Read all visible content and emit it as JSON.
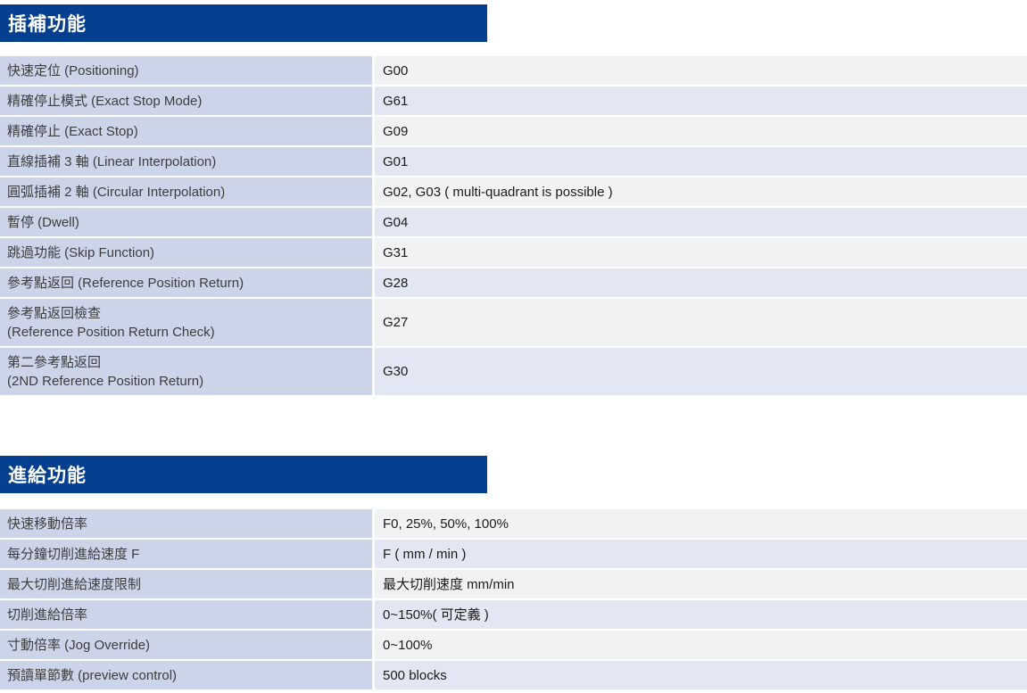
{
  "colors": {
    "header_bg": "#04408f",
    "header_text": "#ffffff",
    "label_column_bg": "#ccd4e9",
    "value_row_light": "#f1f2f4",
    "value_row_blue": "#e2e7f3",
    "label_text": "#3d3d3d",
    "value_text": "#1b1b1b"
  },
  "sections": [
    {
      "title": "插補功能",
      "rows": [
        {
          "label": "快速定位 (Positioning)",
          "value": "G00"
        },
        {
          "label": "精確停止模式 (Exact Stop Mode)",
          "value": "G61"
        },
        {
          "label": "精確停止 (Exact Stop)",
          "value": "G09"
        },
        {
          "label": "直線插補 3 軸 (Linear Interpolation)",
          "value": "G01"
        },
        {
          "label": "圓弧插補 2 軸 (Circular Interpolation)",
          "value": "G02, G03 ( multi-quadrant is possible )"
        },
        {
          "label": "暫停 (Dwell)",
          "value": "G04"
        },
        {
          "label": "跳過功能 (Skip Function)",
          "value": "G31"
        },
        {
          "label": "參考點返回 (Reference Position Return)",
          "value": "G28"
        },
        {
          "label": "參考點返回檢查",
          "label2": "(Reference Position Return Check)",
          "value": "G27"
        },
        {
          "label": "第二參考點返回",
          "label2": "(2ND Reference Position Return)",
          "value": "G30"
        }
      ]
    },
    {
      "title": "進給功能",
      "rows": [
        {
          "label": "快速移動倍率",
          "value": "F0, 25%, 50%, 100%"
        },
        {
          "label": "每分鐘切削進給速度 F",
          "value": "F ( mm / min )"
        },
        {
          "label": "最大切削進給速度限制",
          "value": "最大切削速度 mm/min"
        },
        {
          "label": "切削進給倍率",
          "value": "0~150%( 可定義 )"
        },
        {
          "label": "寸動倍率 (Jog Override)",
          "value": "0~100%"
        },
        {
          "label": "預讀單節數 (preview control)",
          "value": "500 blocks"
        }
      ]
    }
  ]
}
